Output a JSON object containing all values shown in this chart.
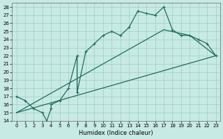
{
  "xlabel": "Humidex (Indice chaleur)",
  "xlim": [
    -0.5,
    23.5
  ],
  "ylim": [
    14,
    28.5
  ],
  "xticks": [
    0,
    1,
    2,
    3,
    4,
    5,
    6,
    7,
    8,
    9,
    10,
    11,
    12,
    13,
    14,
    15,
    16,
    17,
    18,
    19,
    20,
    21,
    22,
    23
  ],
  "yticks": [
    14,
    15,
    16,
    17,
    18,
    19,
    20,
    21,
    22,
    23,
    24,
    25,
    26,
    27,
    28
  ],
  "bg_color": "#c8eae4",
  "grid_color_major": "#9dccc4",
  "grid_color_minor": "#b8ddd8",
  "line_color": "#1e6b5e",
  "curve1_x": [
    0,
    1,
    2,
    3,
    3.5,
    4,
    4,
    5,
    6,
    7,
    7,
    8,
    9,
    10,
    11,
    12,
    13,
    14,
    15,
    16,
    17,
    18,
    19,
    20,
    21,
    22,
    23
  ],
  "curve1_y": [
    17,
    16.5,
    15.5,
    15,
    14,
    15.5,
    16,
    16.5,
    18,
    22,
    17.5,
    22.5,
    23.5,
    24.5,
    25,
    24.5,
    25.5,
    27.5,
    27.2,
    27,
    28,
    25.2,
    24.5,
    24.5,
    24,
    23.5,
    22
  ],
  "curve2_x": [
    0,
    23
  ],
  "curve2_y": [
    15,
    22
  ],
  "curve3_x": [
    0,
    17,
    20,
    23
  ],
  "curve3_y": [
    15,
    25.2,
    24.5,
    22
  ],
  "linewidth": 0.9,
  "markersize": 3,
  "marker": "+",
  "fontsize_tick": 5,
  "fontsize_xlabel": 6
}
